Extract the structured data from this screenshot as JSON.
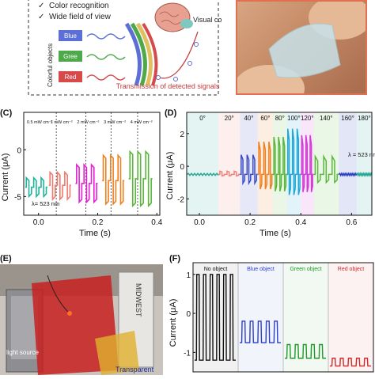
{
  "panel_a": {
    "checklist": [
      "Color recognition",
      "Wide field of view"
    ],
    "side_label": "Colorful objects",
    "objects": [
      {
        "label": "Blue",
        "color": "#5b6fd6"
      },
      {
        "label": "Gree",
        "color": "#4ea94a"
      },
      {
        "label": "Red",
        "color": "#d64a4a"
      }
    ],
    "cortex_label": "Visual cortex",
    "transmission_label": "Transmission of detected signals"
  },
  "panel_c": {
    "tag": "(C)",
    "intensity_labels": [
      "0.5 mW cm⁻²",
      "1 mW cm⁻²",
      "2 mW cm⁻²",
      "3 mW cm⁻²",
      "4 mW cm⁻²"
    ],
    "wavelength_label": "λ= 523 nm",
    "ylabel": "Current (μA)",
    "xlabel": "Time (s)"
  },
  "panel_d": {
    "tag": "(D)",
    "angle_labels": [
      "0°",
      "20°",
      "40°",
      "60°",
      "80°",
      "100°",
      "120°",
      "140°",
      "160°",
      "180°"
    ],
    "wavelength_label": "λ = 523 nm",
    "ylabel": "Current (μA)",
    "xlabel": "Time (s)"
  },
  "panel_e": {
    "tag": "(E)",
    "light_source_label": "light source",
    "transparent_label": "Transparent",
    "device_text": "MIDWEST"
  },
  "panel_f": {
    "tag": "(F)",
    "segment_labels": [
      {
        "label": "No object",
        "color": "#111111"
      },
      {
        "label": "Blue object",
        "color": "#2a3fd0"
      },
      {
        "label": "Green object",
        "color": "#1f9a2a"
      },
      {
        "label": "Red object",
        "color": "#d42a2a"
      }
    ],
    "ylabel": "Current (μA)"
  },
  "chart_data": [
    {
      "id": "C",
      "type": "line",
      "xlabel": "Time (s)",
      "ylabel": "Current (μA)",
      "xlim": [
        -0.05,
        0.41
      ],
      "ylim": [
        -7,
        4
      ],
      "x_ticks": [
        0.0,
        0.2,
        0.4
      ],
      "y_ticks": [
        -5,
        0
      ],
      "x_tick_labels": [
        "0.0",
        "0.2",
        "0.4"
      ],
      "y_tick_labels": [
        "-5",
        "0"
      ],
      "series": [
        {
          "segment": 0,
          "x_range": [
            -0.045,
            0.03
          ],
          "baseline": -4.0,
          "on": -3.0,
          "off": -5.0,
          "color": "#1fb39a"
        },
        {
          "segment": 1,
          "x_range": [
            0.035,
            0.11
          ],
          "baseline": -3.8,
          "on": -2.4,
          "off": -5.3,
          "color": "#f07a6e"
        },
        {
          "segment": 2,
          "x_range": [
            0.125,
            0.2
          ],
          "baseline": -3.6,
          "on": -1.6,
          "off": -5.6,
          "color": "#e81ed8"
        },
        {
          "segment": 3,
          "x_range": [
            0.215,
            0.29
          ],
          "baseline": -3.3,
          "on": -0.6,
          "off": -5.8,
          "color": "#f07f1f"
        },
        {
          "segment": 4,
          "x_range": [
            0.305,
            0.385
          ],
          "baseline": -3.1,
          "on": -0.2,
          "off": -6.0,
          "color": "#59b83a"
        }
      ],
      "dividers_x": [
        0.06,
        0.16,
        0.245,
        0.335
      ]
    },
    {
      "id": "D",
      "type": "line",
      "xlabel": "Time (s)",
      "ylabel": "Current (μA)",
      "xlim": [
        -0.05,
        0.68
      ],
      "ylim": [
        -3,
        3.3
      ],
      "x_ticks": [
        0.0,
        0.2,
        0.4,
        0.6
      ],
      "y_ticks": [
        -2,
        0,
        2
      ],
      "x_tick_labels": [
        "0.0",
        "0.2",
        "0.4",
        "0.6"
      ],
      "y_tick_labels": [
        "-2",
        "0",
        "2"
      ],
      "series": [
        {
          "angle": "0°",
          "x_range": [
            -0.05,
            0.075
          ],
          "amplitude": 0.0,
          "color": "#2aa897"
        },
        {
          "angle": "20°",
          "x_range": [
            0.075,
            0.16
          ],
          "amplitude": 0.2,
          "color": "#f0817a"
        },
        {
          "angle": "40°",
          "x_range": [
            0.16,
            0.23
          ],
          "amplitude": 1.2,
          "color": "#3a4cc4"
        },
        {
          "angle": "60°",
          "x_range": [
            0.23,
            0.29
          ],
          "amplitude": 2.0,
          "color": "#f07f1f"
        },
        {
          "angle": "80°",
          "x_range": [
            0.29,
            0.345
          ],
          "amplitude": 2.3,
          "color": "#59b83a"
        },
        {
          "angle": "100°",
          "x_range": [
            0.345,
            0.4
          ],
          "amplitude": 2.8,
          "color": "#1fa7d8"
        },
        {
          "angle": "120°",
          "x_range": [
            0.4,
            0.45
          ],
          "amplitude": 2.4,
          "color": "#d43ad8"
        },
        {
          "angle": "140°",
          "x_range": [
            0.45,
            0.55
          ],
          "amplitude": 1.1,
          "color": "#59b83a"
        },
        {
          "angle": "160°",
          "x_range": [
            0.55,
            0.62
          ],
          "amplitude": 0.05,
          "color": "#2a3fc4"
        },
        {
          "angle": "180°",
          "x_range": [
            0.62,
            0.68
          ],
          "amplitude": 0.0,
          "color": "#2aa897"
        }
      ],
      "baseline": -0.5
    },
    {
      "id": "F",
      "type": "line",
      "ylabel": "Current (μA)",
      "ylim": [
        -1.5,
        1.3
      ],
      "y_ticks": [
        -1,
        0,
        1
      ],
      "y_tick_labels": [
        "-1",
        "0",
        "1"
      ],
      "series": [
        {
          "name": "No object",
          "on": 1.0,
          "off": -1.2,
          "cycles": 6,
          "color": "#111111"
        },
        {
          "name": "Blue object",
          "on": -0.2,
          "off": -0.75,
          "cycles": 5,
          "color": "#2a3fd0"
        },
        {
          "name": "Green object",
          "on": -0.8,
          "off": -1.15,
          "cycles": 5,
          "color": "#1f9a2a"
        },
        {
          "name": "Red object",
          "on": -1.15,
          "off": -1.35,
          "cycles": 5,
          "color": "#d42a2a"
        }
      ]
    }
  ]
}
